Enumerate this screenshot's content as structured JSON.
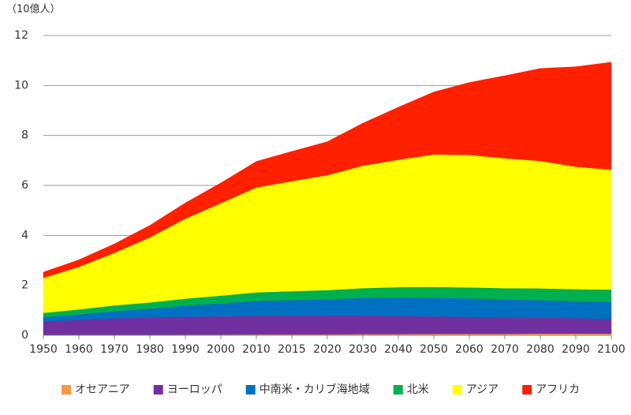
{
  "chart_data": {
    "type": "stacked_area",
    "y_axis_label": "（10億人）",
    "categories": [
      "1950",
      "1960",
      "1970",
      "1980",
      "1990",
      "2000",
      "2010",
      "2015",
      "2020",
      "2030",
      "2040",
      "2050",
      "2060",
      "2070",
      "2080",
      "2090",
      "2100"
    ],
    "ylim": [
      0,
      12
    ],
    "yticks": [
      0,
      2,
      4,
      6,
      8,
      10,
      12
    ],
    "grid": true,
    "legend": "bottom",
    "series": [
      {
        "name": "オセアニア",
        "color": "#f79646",
        "values": [
          0.01,
          0.02,
          0.02,
          0.02,
          0.03,
          0.03,
          0.04,
          0.04,
          0.04,
          0.05,
          0.05,
          0.06,
          0.06,
          0.06,
          0.07,
          0.07,
          0.07
        ]
      },
      {
        "name": "ヨーロッパ",
        "color": "#7030a0",
        "values": [
          0.55,
          0.6,
          0.66,
          0.69,
          0.72,
          0.73,
          0.74,
          0.74,
          0.75,
          0.74,
          0.72,
          0.7,
          0.68,
          0.66,
          0.64,
          0.62,
          0.59
        ]
      },
      {
        "name": "中南米・カリブ海地域",
        "color": "#0070c0",
        "values": [
          0.17,
          0.22,
          0.29,
          0.36,
          0.44,
          0.52,
          0.6,
          0.63,
          0.65,
          0.71,
          0.75,
          0.75,
          0.74,
          0.72,
          0.7,
          0.68,
          0.68
        ]
      },
      {
        "name": "北米",
        "color": "#00b050",
        "values": [
          0.17,
          0.2,
          0.23,
          0.25,
          0.28,
          0.31,
          0.34,
          0.36,
          0.37,
          0.39,
          0.41,
          0.43,
          0.44,
          0.45,
          0.47,
          0.48,
          0.49
        ]
      },
      {
        "name": "アジア",
        "color": "#ffff00",
        "values": [
          1.4,
          1.7,
          2.1,
          2.6,
          3.2,
          3.7,
          4.2,
          4.4,
          4.6,
          4.9,
          5.1,
          5.3,
          5.3,
          5.2,
          5.1,
          4.9,
          4.8
        ]
      },
      {
        "name": "アフリカ",
        "color": "#ff2000",
        "values": [
          0.23,
          0.28,
          0.36,
          0.48,
          0.63,
          0.81,
          1.04,
          1.19,
          1.34,
          1.7,
          2.1,
          2.5,
          2.9,
          3.3,
          3.7,
          4.0,
          4.3
        ]
      }
    ]
  }
}
